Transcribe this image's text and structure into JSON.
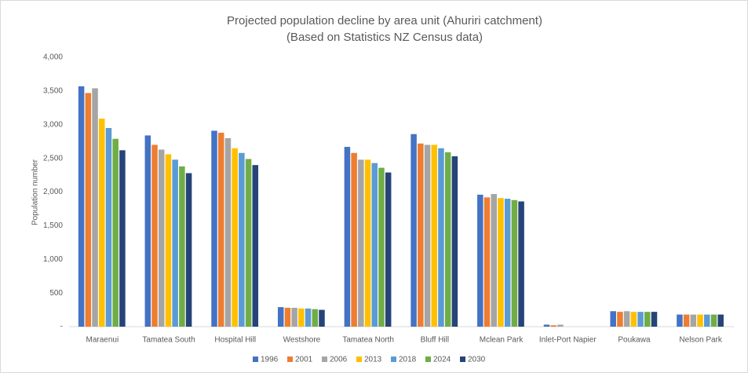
{
  "chart_data": {
    "type": "bar",
    "title": "Projected population decline by area unit (Ahuriri catchment)",
    "subtitle": "(Based on Statistics NZ Census data)",
    "y_label": "Population number",
    "categories": [
      "Maraenui",
      "Tamatea South",
      "Hospital Hill",
      "Westshore",
      "Tamatea North",
      "Bluff Hill",
      "Mclean Park",
      "Inlet-Port Napier",
      "Poukawa",
      "Nelson Park"
    ],
    "series": [
      {
        "name": "1996",
        "color": "#4472c4",
        "values": [
          3570,
          2840,
          2910,
          290,
          2670,
          2860,
          1960,
          30,
          230,
          180
        ]
      },
      {
        "name": "2001",
        "color": "#ed7d31",
        "values": [
          3470,
          2700,
          2880,
          280,
          2580,
          2720,
          1920,
          20,
          220,
          180
        ]
      },
      {
        "name": "2006",
        "color": "#a5a5a5",
        "values": [
          3540,
          2630,
          2800,
          280,
          2480,
          2700,
          1970,
          30,
          230,
          180
        ]
      },
      {
        "name": "2013",
        "color": "#ffc000",
        "values": [
          3090,
          2560,
          2650,
          270,
          2480,
          2700,
          1910,
          0,
          220,
          180
        ]
      },
      {
        "name": "2018",
        "color": "#5b9bd5",
        "values": [
          2950,
          2480,
          2580,
          270,
          2430,
          2650,
          1900,
          0,
          220,
          180
        ]
      },
      {
        "name": "2024",
        "color": "#70ad47",
        "values": [
          2790,
          2380,
          2490,
          260,
          2360,
          2590,
          1880,
          0,
          220,
          180
        ]
      },
      {
        "name": "2030",
        "color": "#264478",
        "values": [
          2620,
          2280,
          2400,
          250,
          2290,
          2530,
          1860,
          0,
          220,
          180
        ]
      }
    ],
    "ylim": [
      0,
      4000
    ],
    "yticks": [
      {
        "value": 0,
        "label": "-"
      },
      500,
      {
        "value": 1000,
        "label": "1,000"
      },
      {
        "value": 1500,
        "label": "1,500"
      },
      {
        "value": 2000,
        "label": "2,000"
      },
      {
        "value": 2500,
        "label": "2,500"
      },
      {
        "value": 3000,
        "label": "3,000"
      },
      {
        "value": 3500,
        "label": "3,500"
      },
      {
        "value": 4000,
        "label": "4,000"
      }
    ],
    "grid": false,
    "legend": "bottom"
  }
}
